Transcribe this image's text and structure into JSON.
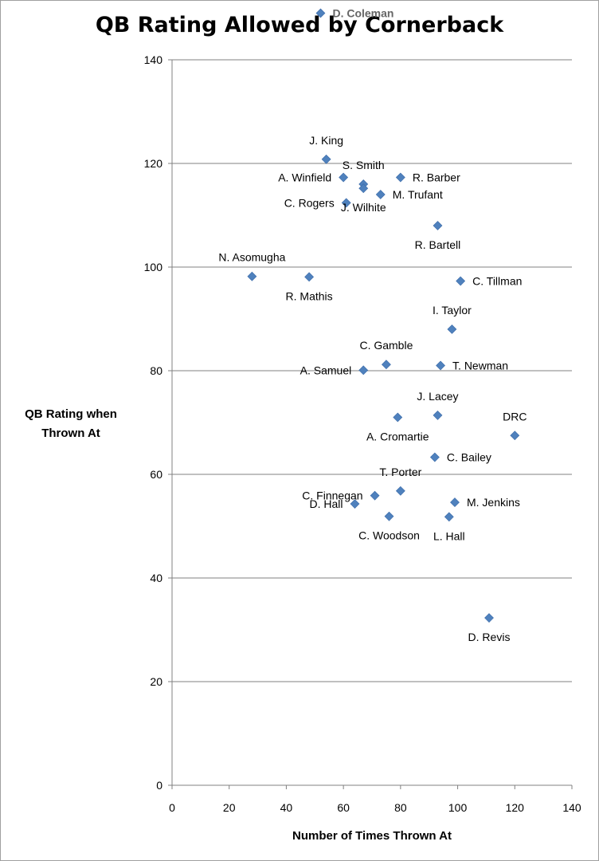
{
  "chart_data": {
    "type": "scatter",
    "title": "QB Rating Allowed by Cornerback",
    "xlabel": "Number of Times Thrown At",
    "ylabel": "QB Rating when Thrown At",
    "xlim": [
      0,
      140
    ],
    "ylim": [
      0,
      140
    ],
    "xticks": [
      0,
      20,
      40,
      60,
      80,
      100,
      120,
      140
    ],
    "yticks": [
      0,
      20,
      40,
      60,
      80,
      100,
      120,
      140
    ],
    "grid": "horizontal",
    "marker_color": "#4F81BD",
    "points": [
      {
        "name": "D. Coleman",
        "x": 52,
        "y": 149,
        "label_side": "right"
      },
      {
        "name": "J. King",
        "x": 54,
        "y": 120.8,
        "label_side": "above"
      },
      {
        "name": "S. Smith",
        "x": 67,
        "y": 116,
        "label_side": "above"
      },
      {
        "name": "A. Winfield",
        "x": 60,
        "y": 117.3,
        "label_side": "left"
      },
      {
        "name": "R. Barber",
        "x": 80,
        "y": 117.3,
        "label_side": "right"
      },
      {
        "name": "J. Wilhite",
        "x": 67,
        "y": 115.2,
        "label_side": "below"
      },
      {
        "name": "M. Trufant",
        "x": 73,
        "y": 114,
        "label_side": "right"
      },
      {
        "name": "C. Rogers",
        "x": 61,
        "y": 112.4,
        "label_side": "left"
      },
      {
        "name": "R. Bartell",
        "x": 93,
        "y": 108,
        "label_side": "below"
      },
      {
        "name": "N. Asomugha",
        "x": 28,
        "y": 98.2,
        "label_side": "above"
      },
      {
        "name": "R. Mathis",
        "x": 48,
        "y": 98.1,
        "label_side": "below"
      },
      {
        "name": "C. Tillman",
        "x": 101,
        "y": 97.3,
        "label_side": "right"
      },
      {
        "name": "I. Taylor",
        "x": 98,
        "y": 88,
        "label_side": "above"
      },
      {
        "name": "C. Gamble",
        "x": 75,
        "y": 81.2,
        "label_side": "above"
      },
      {
        "name": "T. Newman",
        "x": 94,
        "y": 81,
        "label_side": "right"
      },
      {
        "name": "A. Samuel",
        "x": 67,
        "y": 80.1,
        "label_side": "left"
      },
      {
        "name": "J. Lacey",
        "x": 93,
        "y": 71.4,
        "label_side": "above"
      },
      {
        "name": "A. Cromartie",
        "x": 79,
        "y": 71,
        "label_side": "below"
      },
      {
        "name": "DRC",
        "x": 120,
        "y": 67.5,
        "label_side": "above"
      },
      {
        "name": "C. Bailey",
        "x": 92,
        "y": 63.3,
        "label_side": "right"
      },
      {
        "name": "T. Porter",
        "x": 80,
        "y": 56.8,
        "label_side": "above"
      },
      {
        "name": "C. Finnegan",
        "x": 71,
        "y": 55.9,
        "label_side": "left"
      },
      {
        "name": "M. Jenkins",
        "x": 99,
        "y": 54.6,
        "label_side": "right"
      },
      {
        "name": "D. Hall",
        "x": 64,
        "y": 54.3,
        "label_side": "left"
      },
      {
        "name": "C. Woodson",
        "x": 76,
        "y": 51.9,
        "label_side": "below"
      },
      {
        "name": "L. Hall",
        "x": 97,
        "y": 51.8,
        "label_side": "below"
      },
      {
        "name": "D. Revis",
        "x": 111,
        "y": 32.3,
        "label_side": "below"
      }
    ]
  }
}
